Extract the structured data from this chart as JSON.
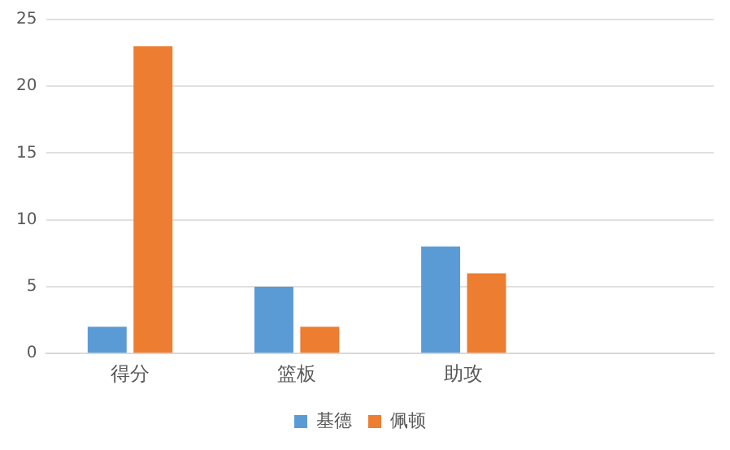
{
  "chart_data": {
    "type": "bar",
    "categories": [
      "得分",
      "篮板",
      "助攻",
      null
    ],
    "series": [
      {
        "name": "基德",
        "color": "#5b9bd5",
        "values": [
          2,
          5,
          8,
          null
        ]
      },
      {
        "name": "佩顿",
        "color": "#ed7d31",
        "values": [
          23,
          2,
          6,
          null
        ]
      }
    ],
    "ylim": [
      0,
      25
    ],
    "yticks": [
      0,
      5,
      10,
      15,
      20,
      25
    ],
    "grid": "y",
    "legend": "bottom"
  }
}
